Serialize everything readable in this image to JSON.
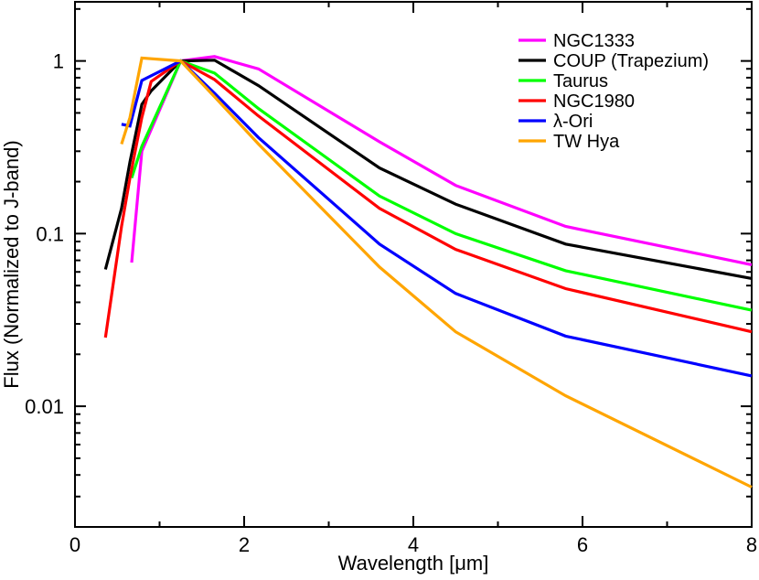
{
  "chart_data": {
    "type": "line",
    "xlabel": "Wavelength [μm]",
    "ylabel": "Flux (Normalized to J-band)",
    "xlim": [
      0,
      8
    ],
    "ylim": [
      0.002,
      2.2
    ],
    "yscale": "log",
    "x_ticks": [
      0,
      2,
      4,
      6,
      8
    ],
    "x_tick_labels": [
      "0",
      "2",
      "4",
      "6",
      "8"
    ],
    "y_ticks": [
      0.01,
      0.1,
      1
    ],
    "y_tick_labels": [
      "0.01",
      "0.1",
      "1"
    ],
    "grid": false,
    "legend_position": "top-right",
    "series": [
      {
        "name": "NGC1333",
        "color": "#ff00ff",
        "x": [
          0.67,
          0.79,
          1.25,
          1.65,
          2.17,
          3.6,
          4.5,
          5.8,
          8.0
        ],
        "y": [
          0.068,
          0.3,
          1.0,
          1.06,
          0.9,
          0.34,
          0.19,
          0.11,
          0.066
        ]
      },
      {
        "name": "COUP (Trapezium)",
        "color": "#000000",
        "x": [
          0.36,
          0.55,
          0.65,
          0.79,
          0.9,
          1.25,
          1.65,
          2.17,
          3.6,
          4.5,
          5.8,
          8.0
        ],
        "y": [
          0.062,
          0.14,
          0.26,
          0.56,
          0.67,
          1.0,
          1.01,
          0.72,
          0.24,
          0.148,
          0.087,
          0.055
        ]
      },
      {
        "name": "Taurus",
        "color": "#00ff00",
        "x": [
          0.67,
          0.79,
          1.25,
          1.65,
          2.17,
          3.6,
          4.5,
          5.8,
          8.0
        ],
        "y": [
          0.21,
          0.32,
          1.0,
          0.85,
          0.53,
          0.165,
          0.1,
          0.061,
          0.036
        ]
      },
      {
        "name": "NGC1980",
        "color": "#ff0000",
        "x": [
          0.36,
          0.55,
          0.65,
          0.79,
          0.9,
          1.25,
          1.65,
          2.17,
          3.6,
          4.5,
          5.8,
          8.0
        ],
        "y": [
          0.025,
          0.11,
          0.21,
          0.47,
          0.76,
          1.0,
          0.78,
          0.48,
          0.14,
          0.081,
          0.048,
          0.027
        ]
      },
      {
        "name": "λ-Ori",
        "color": "#0000ff",
        "x": [
          0.55,
          0.65,
          0.79,
          1.25,
          1.65,
          2.17,
          3.6,
          4.5,
          5.8,
          8.0
        ],
        "y": [
          0.43,
          0.42,
          0.77,
          1.0,
          0.65,
          0.36,
          0.087,
          0.045,
          0.0255,
          0.015
        ]
      },
      {
        "name": "TW Hya",
        "color": "#ffa500",
        "x": [
          0.55,
          0.65,
          0.79,
          1.25,
          1.65,
          2.17,
          3.6,
          4.5,
          5.8,
          8.0
        ],
        "y": [
          0.33,
          0.47,
          1.04,
          1.0,
          0.62,
          0.33,
          0.064,
          0.027,
          0.0115,
          0.0034
        ]
      }
    ]
  }
}
